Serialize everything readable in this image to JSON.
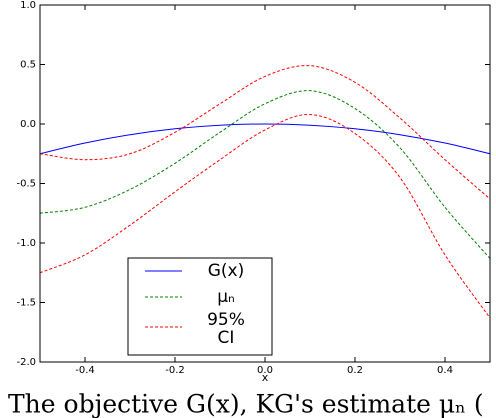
{
  "chart_data": {
    "type": "line",
    "x": [
      -0.5,
      -0.4,
      -0.3,
      -0.2,
      -0.1,
      0.0,
      0.1,
      0.2,
      0.3,
      0.4,
      0.5
    ],
    "series": [
      {
        "name": "G(x)",
        "color": "#0000ff",
        "dash": false,
        "values": [
          -0.25,
          -0.16,
          -0.09,
          -0.04,
          -0.01,
          0.0,
          -0.01,
          -0.04,
          -0.09,
          -0.16,
          -0.25
        ]
      },
      {
        "name": "μₙ",
        "color": "#008000",
        "dash": true,
        "values": [
          -0.75,
          -0.7,
          -0.55,
          -0.33,
          -0.07,
          0.17,
          0.28,
          0.13,
          -0.2,
          -0.7,
          -1.13
        ]
      },
      {
        "name": "95% CI",
        "color": "#ff0000",
        "dash": true,
        "values": [
          -0.25,
          -0.3,
          -0.25,
          -0.07,
          0.17,
          0.4,
          0.49,
          0.35,
          0.05,
          -0.3,
          -0.63
        ],
        "lower": [
          -1.25,
          -1.1,
          -0.85,
          -0.57,
          -0.3,
          -0.05,
          0.08,
          -0.08,
          -0.45,
          -1.1,
          -1.63
        ]
      }
    ],
    "x_label": "x",
    "xlim": [
      -0.5,
      0.5
    ],
    "xticks": [
      -0.4,
      -0.2,
      {
        "value": 0,
        "label": "0.0"
      },
      0.2,
      0.4
    ],
    "ylim": [
      -2,
      1
    ],
    "yticks": [
      {
        "value": 1,
        "label": "1.0"
      },
      0.5,
      {
        "value": 0,
        "label": "0.0"
      },
      -0.5,
      {
        "value": -1,
        "label": "-1.0"
      },
      -1.5,
      {
        "value": -2,
        "label": "-2.0"
      }
    ],
    "grid": false,
    "legend": "lower left",
    "caption": "The objective G(x), KG's estimate μₙ ("
  }
}
